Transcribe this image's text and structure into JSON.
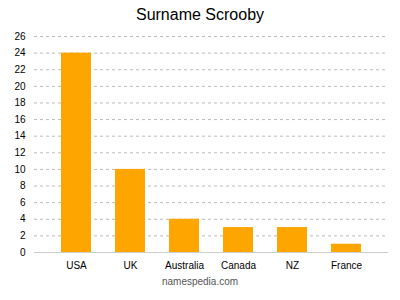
{
  "chart_data": {
    "type": "bar",
    "title": "Surname Scrooby",
    "caption": "namespedia.com",
    "categories": [
      "USA",
      "UK",
      "Australia",
      "Canada",
      "NZ",
      "France"
    ],
    "values": [
      24,
      10,
      4,
      3,
      3,
      1
    ],
    "color": "#FFA500",
    "ylim": [
      0,
      26
    ],
    "yticks": [
      0,
      2,
      4,
      6,
      8,
      10,
      12,
      14,
      16,
      18,
      20,
      22,
      24,
      26
    ],
    "grid": true
  }
}
